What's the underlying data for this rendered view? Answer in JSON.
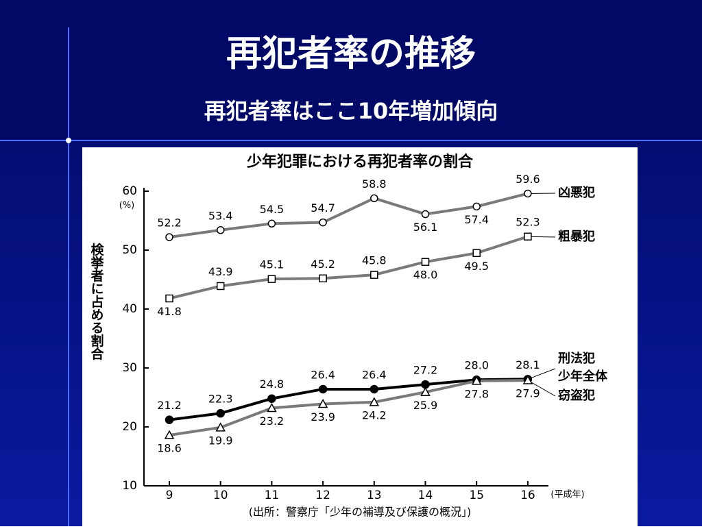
{
  "slide": {
    "title": "再犯者率の推移",
    "subtitle": "再犯者率はここ10年増加傾向"
  },
  "chart_data": {
    "type": "line",
    "title": "少年犯罪における再犯者率の割合",
    "y_label": "検挙者に占める割合",
    "y_unit": "(%)",
    "x_unit": "(平成年)",
    "source": "(出所：警察庁「少年の補導及び保護の概況」)",
    "categories": [
      "9",
      "10",
      "11",
      "12",
      "13",
      "14",
      "15",
      "16"
    ],
    "ylim": [
      10,
      60
    ],
    "yticks": [
      10,
      20,
      30,
      40,
      50,
      60
    ],
    "series": [
      {
        "name": "凶悪犯",
        "color": "#7a7a7a",
        "marker": "circle",
        "values": [
          52.2,
          53.4,
          54.5,
          54.7,
          58.8,
          56.1,
          57.4,
          59.6
        ],
        "value_labels": [
          "52.2",
          "53.4",
          "54.5",
          "54.7",
          "58.8",
          "56.1",
          "57.4",
          "59.6"
        ]
      },
      {
        "name": "粗暴犯",
        "color": "#7a7a7a",
        "marker": "square",
        "values": [
          41.8,
          43.9,
          45.1,
          45.2,
          45.8,
          48.0,
          49.5,
          52.3
        ],
        "value_labels": [
          "41.8",
          "43.9",
          "45.1",
          "45.2",
          "45.8",
          "48.0",
          "49.5",
          "52.3"
        ]
      },
      {
        "name": "刑法犯 少年全体",
        "color": "#000000",
        "marker": "filled-circle",
        "values": [
          21.2,
          22.3,
          24.8,
          26.4,
          26.4,
          27.2,
          28.0,
          28.1
        ],
        "value_labels": [
          "21.2",
          "22.3",
          "24.8",
          "26.4",
          "26.4",
          "27.2",
          "28.0",
          "28.1"
        ]
      },
      {
        "name": "窃盗犯",
        "color": "#7a7a7a",
        "marker": "triangle",
        "values": [
          18.6,
          19.9,
          23.2,
          23.9,
          24.2,
          25.9,
          27.8,
          27.9
        ],
        "value_labels": [
          "18.6",
          "19.9",
          "23.2",
          "23.9",
          "24.2",
          "25.9",
          "27.8",
          "27.9"
        ]
      }
    ]
  }
}
